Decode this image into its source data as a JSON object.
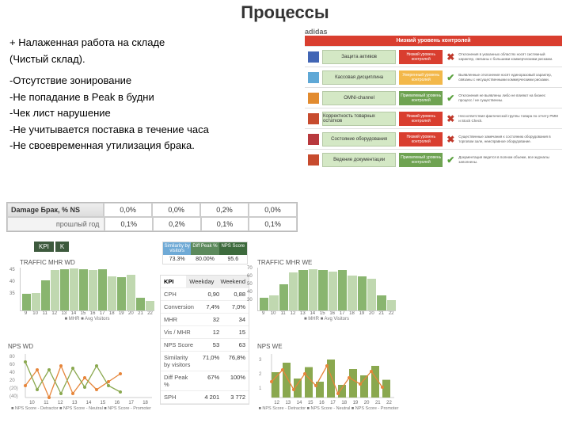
{
  "title": "Процессы",
  "text": {
    "plus1": "+ Налаженная работа на складе",
    "plus2": "  (Чистый склад).",
    "m1": "-Отсутствие зонирование",
    "m2": "-Не попадание в Peak в будни",
    "m3": "-Чек лист нарушение",
    "m4": "-Не учитывается поставка в течение часа",
    "m5": "-Не своевременная утилизация брака."
  },
  "adidas": "adidas",
  "risk": {
    "header": "Низкий уровень контролей",
    "rows": [
      {
        "sq": "#4266b5",
        "label": "Защита активов",
        "status": "Низкий уровень контролей",
        "color": "#d93e2f",
        "mark": "✖",
        "ok": false,
        "desc": "Отклонения в указанных областях носят системный характер, связаны с большими коммерческими рисками."
      },
      {
        "sq": "#5fa8d6",
        "label": "Кассовая дисциплина",
        "status": "Умеренный уровень контролей",
        "color": "#f3b84a",
        "mark": "✔",
        "ok": true,
        "desc": "Выявленные отклонения носят единоразовый характер, связаны с несущественными коммерческими рисками."
      },
      {
        "sq": "#e28b2f",
        "label": "OMNI-channel",
        "status": "Приемлемый уровень контролей",
        "color": "#6fa352",
        "mark": "✔",
        "ok": true,
        "desc": "Отклонения не выявлены либо не влияют на бизнес процесс / не существенны."
      },
      {
        "sq": "#c74b2e",
        "label": "Корректность товарных остатков",
        "status": "Низкий уровень контролей",
        "color": "#d93e2f",
        "mark": "✖",
        "ok": false,
        "desc": "Несоответствия фактической группы товара по отчету PMM и Stock Check."
      },
      {
        "sq": "#b8393d",
        "label": "Состояние оборудования",
        "status": "Низкий уровень контролей",
        "color": "#d93e2f",
        "mark": "✖",
        "ok": false,
        "desc": "Существенные замечания к состоянию оборудования в торговом зале, неисправное оборудование."
      },
      {
        "sq": "#c74b2e",
        "label": "Ведение документации",
        "status": "Приемлемый уровень контролей",
        "color": "#6fa352",
        "mark": "✔",
        "ok": true,
        "desc": "Документация ведется в полном объеме, все журналы заполнены."
      }
    ]
  },
  "damage": {
    "label": "Damage Брак, % NS",
    "sub": "прошлый год",
    "r1": [
      "0,0%",
      "0,0%",
      "0,2%",
      "0,0%"
    ],
    "r2": [
      "0,1%",
      "0,2%",
      "0,1%",
      "0,1%"
    ]
  },
  "kpi_tags": [
    "KPI",
    "K"
  ],
  "mini_header": [
    "Similarity by visitors",
    "Diff Peak %",
    "NPS Score"
  ],
  "mini_vals": [
    "73.3%",
    "80.00%",
    "95.6"
  ],
  "kpi_table": {
    "head": [
      "KPI",
      "Weekday",
      "Weekend"
    ],
    "rows": [
      [
        "CPH",
        "0,90",
        "0,88"
      ],
      [
        "Conversion",
        "7,4%",
        "7,0%"
      ],
      [
        "MHR",
        "32",
        "34"
      ],
      [
        "Vis / MHR",
        "12",
        "15"
      ],
      [
        "NPS Score",
        "53",
        "63"
      ],
      [
        "Similarity by visitors",
        "71,0%",
        "76,8%"
      ],
      [
        "Diff Peak %",
        "67%",
        "100%"
      ],
      [
        "SPH",
        "4 201",
        "3 772"
      ]
    ]
  },
  "traffic_wd": {
    "title": "TRAFFIC MHR WD",
    "heights": [
      38,
      40,
      70,
      92,
      95,
      96,
      95,
      92,
      95,
      78,
      76,
      82,
      30,
      22
    ],
    "xaxis": [
      "9",
      "10",
      "11",
      "12",
      "13",
      "14",
      "15",
      "16",
      "17",
      "18",
      "19",
      "20",
      "21",
      "22"
    ],
    "yticks": [
      "45",
      "40",
      "35"
    ],
    "legend": "■ MHR   ■ Avg Visitors"
  },
  "traffic_we": {
    "title": "TRAFFIC MHR WE",
    "heights": [
      30,
      34,
      60,
      88,
      92,
      94,
      92,
      90,
      92,
      80,
      78,
      72,
      34,
      24
    ],
    "xaxis": [
      "9",
      "10",
      "11",
      "12",
      "13",
      "14",
      "15",
      "16",
      "17",
      "18",
      "19",
      "20",
      "21",
      "22"
    ],
    "yticks": [
      "70",
      "60",
      "50",
      "40",
      "30",
      "20",
      "10"
    ],
    "legend": "■ MHR   ■ Avg Visitors"
  },
  "nps_wd": {
    "title": "NPS WD",
    "xaxis": [
      "10",
      "11",
      "12",
      "13",
      "14",
      "15",
      "16",
      "17",
      "18"
    ],
    "legend": "■ NPS Score - Detractor   ■ NPS Score - Neutral   ■ NPS Score - Promoter",
    "yticks": [
      "80",
      "60",
      "40",
      "20",
      "(20)",
      "(40)"
    ],
    "points": [
      [
        0,
        40
      ],
      [
        15,
        20
      ],
      [
        30,
        55
      ],
      [
        45,
        15
      ],
      [
        60,
        50
      ],
      [
        75,
        30
      ],
      [
        90,
        45
      ],
      [
        105,
        35
      ],
      [
        120,
        25
      ]
    ],
    "points2": [
      [
        0,
        10
      ],
      [
        15,
        45
      ],
      [
        30,
        20
      ],
      [
        45,
        50
      ],
      [
        60,
        18
      ],
      [
        75,
        42
      ],
      [
        90,
        15
      ],
      [
        105,
        40
      ],
      [
        120,
        48
      ]
    ]
  },
  "nps_we": {
    "title": "NPS WE",
    "xaxis": [
      "12",
      "13",
      "14",
      "15",
      "16",
      "17",
      "18",
      "19",
      "20",
      "21",
      "22"
    ],
    "legend": "■ NPS Score - Detractor   ■ NPS Score - Neutral   ■ NPS Score - Promoter",
    "yticks": [
      "3",
      "2",
      "1"
    ],
    "bars": [
      40,
      55,
      30,
      48,
      25,
      60,
      20,
      45,
      35,
      50,
      28
    ],
    "points": [
      [
        0,
        35
      ],
      [
        14,
        20
      ],
      [
        28,
        45
      ],
      [
        42,
        25
      ],
      [
        56,
        40
      ],
      [
        70,
        15
      ],
      [
        84,
        50
      ],
      [
        98,
        30
      ],
      [
        112,
        38
      ],
      [
        126,
        22
      ],
      [
        140,
        42
      ]
    ]
  }
}
